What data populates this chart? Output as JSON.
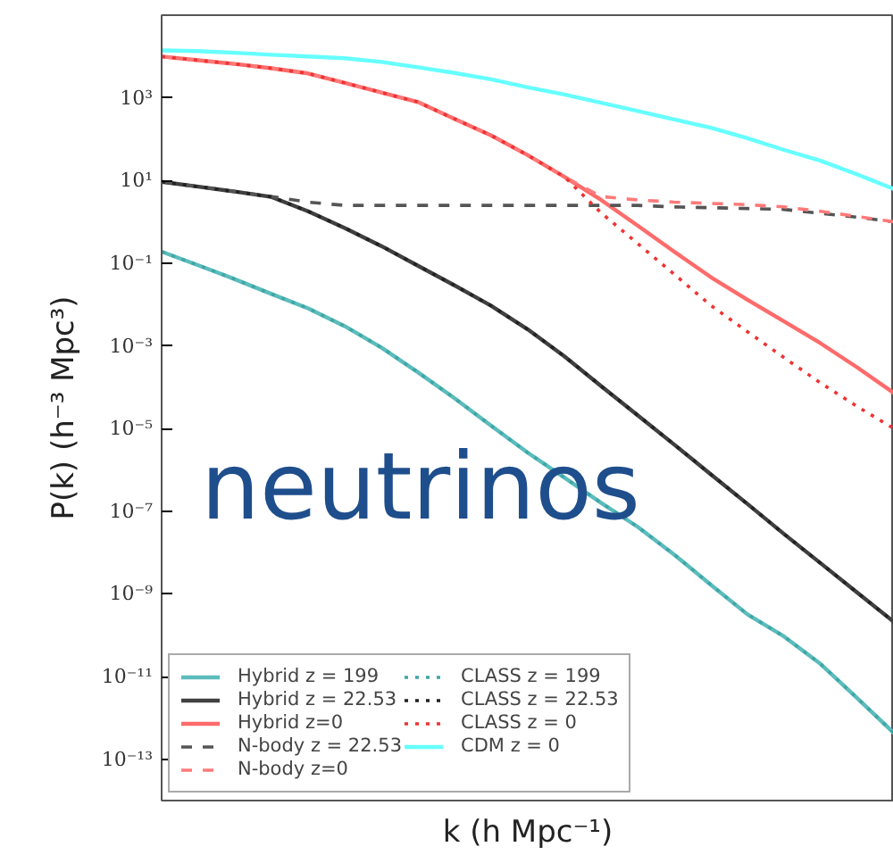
{
  "chart_data": {
    "type": "line",
    "xlabel": "k (h Mpc⁻¹)",
    "ylabel": "P(k) (h⁻³ Mpc³)",
    "categories": [
      null,
      null,
      null,
      null,
      null,
      null,
      null,
      null,
      null,
      null,
      null,
      null,
      null,
      null,
      null,
      null,
      null,
      null,
      null,
      null,
      null
    ],
    "log": "y",
    "ylim": [
      1e-14,
      100000.0
    ],
    "yticks": [
      {
        "value": 1e-13,
        "label": "10⁻¹³"
      },
      {
        "value": 1e-11,
        "label": "10⁻¹¹"
      },
      {
        "value": 1e-09,
        "label": "10⁻⁹"
      },
      {
        "value": 1e-07,
        "label": "10⁻⁷"
      },
      {
        "value": 1e-05,
        "label": "10⁻⁵"
      },
      {
        "value": 0.001,
        "label": "10⁻³"
      },
      {
        "value": 0.1,
        "label": "10⁻¹"
      },
      {
        "value": 10,
        "label": "10¹"
      },
      {
        "value": 1000,
        "label": "10³"
      }
    ],
    "tick_labels": "y",
    "grid": false,
    "legend": "bottom left",
    "annotations": [
      "neutrinos"
    ],
    "series": [
      {
        "name": "Hybrid z = 199",
        "color": "#5cbcbc",
        "line_style": "solid",
        "values": [
          0.19,
          0.089,
          0.041,
          0.018,
          0.0081,
          0.003,
          0.00091,
          0.00023,
          5.4e-05,
          1.17e-05,
          2.6e-06,
          6.5e-07,
          1.6e-07,
          4.2e-08,
          8.9e-09,
          1.66e-09,
          3.2e-10,
          9.3e-11,
          2e-11,
          3e-12,
          4.3e-13
        ]
      },
      {
        "name": "Hybrid z = 22.53",
        "color": "#404040",
        "line_style": "solid",
        "values": [
          9.3,
          7.1,
          5.4,
          4.0,
          1.8,
          0.71,
          0.26,
          0.087,
          0.029,
          0.0093,
          0.0025,
          0.00056,
          0.000107,
          2.1e-05,
          4.1e-06,
          7.8e-07,
          1.5e-07,
          2.8e-08,
          5.5e-09,
          1.07e-09,
          2.1e-10
        ]
      },
      {
        "name": "Hybrid z=0",
        "color": "#ff6b6b",
        "line_style": "solid",
        "values": [
          10000,
          8100,
          6600,
          5200,
          3900,
          2300,
          1350,
          790,
          310,
          123,
          41,
          12.3,
          3.4,
          0.81,
          0.19,
          0.046,
          0.013,
          0.0039,
          0.00115,
          0.0003,
          7.2e-05
        ]
      },
      {
        "name": "N-body z = 22.53",
        "color": "#555555",
        "line_style": "dashed",
        "values": [
          9.3,
          7.1,
          5.4,
          4.1,
          3.0,
          2.5,
          2.5,
          2.5,
          2.5,
          2.5,
          2.5,
          2.5,
          2.5,
          2.5,
          2.3,
          2.2,
          2.1,
          2.0,
          1.6,
          1.3,
          1.0
        ]
      },
      {
        "name": "N-body z=0",
        "color": "#ff7a7a",
        "line_style": "dashed",
        "values": [
          10000,
          8100,
          6600,
          5200,
          3900,
          2300,
          1350,
          790,
          310,
          123,
          41,
          12.3,
          4.1,
          3.4,
          3.0,
          2.8,
          2.6,
          2.3,
          1.8,
          1.35,
          1.0
        ]
      },
      {
        "name": "CLASS z = 199",
        "color": "#3fa6a6",
        "line_style": "dotted",
        "values": [
          0.19,
          0.089,
          0.041,
          0.018,
          0.0081,
          0.003,
          0.00091,
          0.00023,
          5.4e-05,
          1.17e-05,
          2.6e-06,
          6.5e-07,
          1.6e-07,
          4.2e-08,
          8.9e-09,
          1.66e-09,
          3.2e-10,
          9.3e-11,
          2e-11,
          3e-12,
          4.3e-13
        ]
      },
      {
        "name": "CLASS z = 22.53",
        "color": "#222222",
        "line_style": "dotted",
        "values": [
          9.3,
          7.1,
          5.4,
          4.0,
          1.8,
          0.71,
          0.26,
          0.087,
          0.029,
          0.0093,
          0.0025,
          0.00056,
          0.000107,
          2.1e-05,
          4.1e-06,
          7.8e-07,
          1.5e-07,
          2.8e-08,
          5.5e-09,
          1.07e-09,
          2.1e-10
        ]
      },
      {
        "name": "CLASS z = 0",
        "color": "#ee3333",
        "line_style": "dotted",
        "values": [
          10000,
          8100,
          6600,
          5200,
          3900,
          2300,
          1350,
          790,
          310,
          123,
          41,
          12.3,
          1.66,
          0.3,
          0.054,
          0.0095,
          0.0022,
          0.00052,
          0.000126,
          3.4e-05,
          1e-05
        ]
      },
      {
        "name": "CDM z = 0",
        "color": "#66ffff",
        "line_style": "solid",
        "values": [
          14000,
          13500,
          12300,
          11000,
          10000,
          9100,
          7400,
          5500,
          4000,
          2800,
          1800,
          1200,
          760,
          480,
          300,
          190,
          105,
          55,
          30,
          14,
          6.2
        ]
      }
    ]
  }
}
